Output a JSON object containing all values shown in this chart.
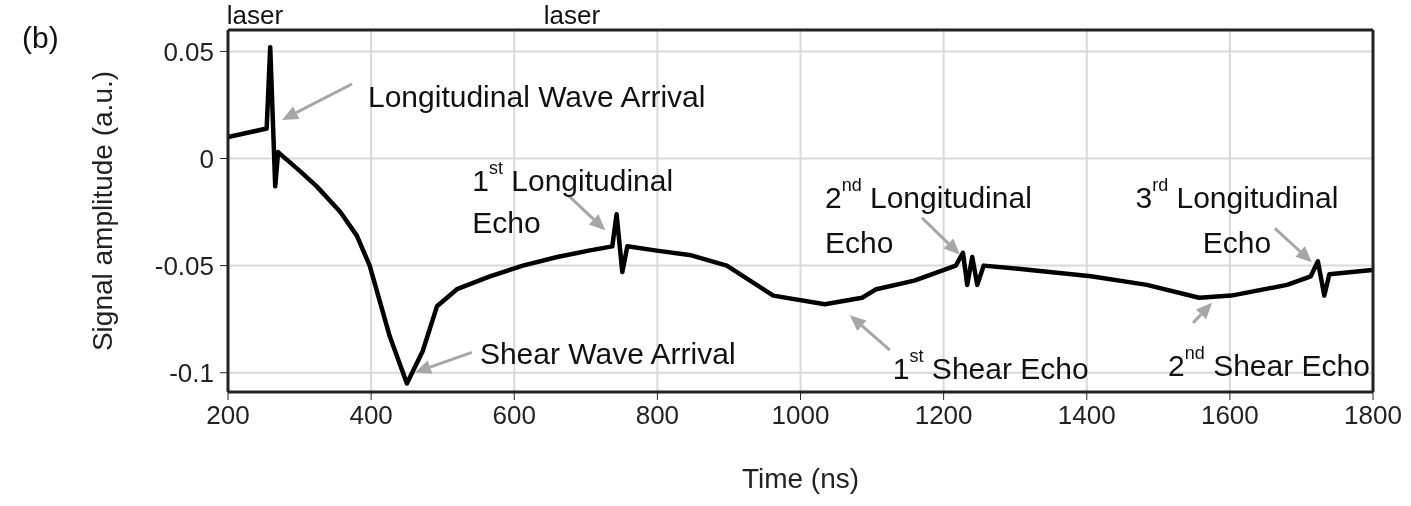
{
  "chart_data": {
    "type": "line",
    "xlabel": "Time (ns)",
    "ylabel": "Signal amplitude (a.u.)",
    "xlim": [
      200,
      1800
    ],
    "xticks": [
      200,
      400,
      600,
      800,
      1000,
      1200,
      1400,
      1600,
      1800
    ],
    "ylim": [
      -0.109,
      0.06
    ],
    "yticks": [
      -0.1,
      -0.05,
      0,
      0.05
    ],
    "grid": true,
    "series": [
      {
        "color": "#000000",
        "x": [
          200,
          254,
          259,
          266,
          270,
          301,
          324,
          357,
          380,
          398,
          426,
          450,
          472,
          492,
          520,
          566,
          612,
          660,
          704,
          737,
          743,
          751,
          758,
          799,
          845,
          897,
          962,
          1034,
          1086,
          1106,
          1159,
          1217,
          1227,
          1233,
          1240,
          1247,
          1256,
          1321,
          1406,
          1484,
          1557,
          1602,
          1680,
          1713,
          1723,
          1732,
          1739,
          1799
        ],
        "values": [
          0.01,
          0.014,
          0.052,
          -0.013,
          0.003,
          -0.006,
          -0.013,
          -0.025,
          -0.036,
          -0.05,
          -0.083,
          -0.105,
          -0.09,
          -0.069,
          -0.061,
          -0.055,
          -0.05,
          -0.046,
          -0.043,
          -0.041,
          -0.026,
          -0.053,
          -0.041,
          -0.043,
          -0.045,
          -0.05,
          -0.064,
          -0.068,
          -0.065,
          -0.061,
          -0.057,
          -0.05,
          -0.044,
          -0.059,
          -0.046,
          -0.059,
          -0.05,
          -0.052,
          -0.055,
          -0.059,
          -0.065,
          -0.064,
          -0.059,
          -0.055,
          -0.048,
          -0.064,
          -0.054,
          -0.052
        ]
      }
    ],
    "annotations": [
      "(b)",
      "laser",
      "laser",
      "Longitudinal Wave Arrival",
      {
        "text": "1$^{st}$ Longitudinal\nEcho",
        "x": 737,
        "y": -0.041
      },
      {
        "text": "Shear Wave Arrival",
        "x": 450,
        "y": -0.105
      },
      {
        "text": "1$^{st}$ Shear Echo",
        "x": 1034,
        "y": -0.068
      },
      {
        "text": "2$^{nd}$ Longitudinal\nEcho",
        "x": 1227,
        "y": -0.044
      },
      {
        "text": "2$^{nd}$ Shear Echo",
        "x": 1557,
        "y": -0.065
      },
      {
        "text": "3$^{rd}$ Longitudinal\nEcho",
        "x": 1723,
        "y": -0.048
      }
    ]
  }
}
